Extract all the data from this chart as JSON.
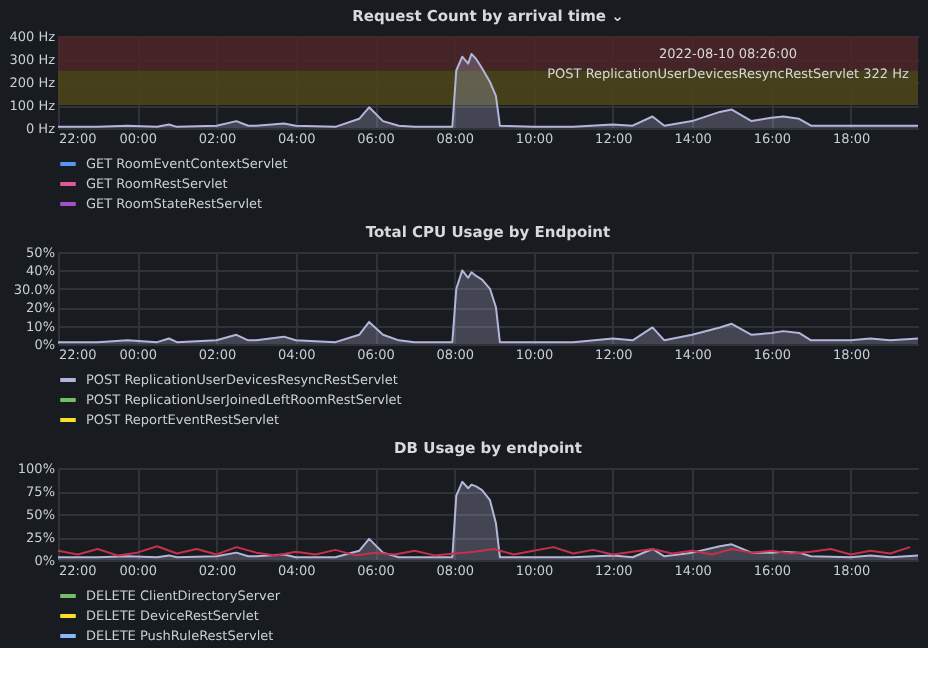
{
  "chart_data": [
    {
      "type": "line",
      "title": "Request Count by arrival time ⌄",
      "xlim": [
        "2022-08-09T22:00",
        "2022-08-10T19:42"
      ],
      "ylim": [
        0,
        400
      ],
      "xticks": [
        {
          "value": "2022-08-09T22:00",
          "label": "22:00"
        },
        {
          "value": "2022-08-10T00:00",
          "label": "00:00"
        },
        {
          "value": "2022-08-10T02:00",
          "label": "02:00"
        },
        {
          "value": "2022-08-10T04:00",
          "label": "04:00"
        },
        {
          "value": "2022-08-10T06:00",
          "label": "06:00"
        },
        {
          "value": "2022-08-10T08:00",
          "label": "08:00"
        },
        {
          "value": "2022-08-10T10:00",
          "label": "10:00"
        },
        {
          "value": "2022-08-10T12:00",
          "label": "12:00"
        },
        {
          "value": "2022-08-10T14:00",
          "label": "14:00"
        },
        {
          "value": "2022-08-10T16:00",
          "label": "16:00"
        },
        {
          "value": "2022-08-10T18:00",
          "label": "18:00"
        }
      ],
      "yticks": [
        {
          "value": 0,
          "label": "0 Hz"
        },
        {
          "value": 100,
          "label": "100 Hz"
        },
        {
          "value": 200,
          "label": "200 Hz"
        },
        {
          "value": 300,
          "label": "300 Hz"
        },
        {
          "value": 400,
          "label": "400 Hz"
        }
      ],
      "grid": true,
      "legend": "bottom",
      "bands": [
        {
          "axis": "y",
          "from": 250,
          "to": 400,
          "color": "#4a2629"
        },
        {
          "axis": "y",
          "from": 100,
          "to": 250,
          "color": "#4a4419"
        }
      ],
      "annotations": [
        "2022-08-10 08:26:00",
        "POST ReplicationUserDevicesResyncRestServlet  322 Hz"
      ],
      "x": [
        "2022-08-09T22:00",
        "2022-08-09T23:00",
        "2022-08-09T23:45",
        "2022-08-10T00:30",
        "2022-08-10T00:48",
        "2022-08-10T01:00",
        "2022-08-10T02:00",
        "2022-08-10T02:30",
        "2022-08-10T02:48",
        "2022-08-10T03:00",
        "2022-08-10T03:42",
        "2022-08-10T04:00",
        "2022-08-10T05:00",
        "2022-08-10T05:36",
        "2022-08-10T05:51",
        "2022-08-10T06:12",
        "2022-08-10T06:36",
        "2022-08-10T07:00",
        "2022-08-10T07:57",
        "2022-08-10T08:03",
        "2022-08-10T08:12",
        "2022-08-10T08:21",
        "2022-08-10T08:26",
        "2022-08-10T08:33",
        "2022-08-10T08:42",
        "2022-08-10T08:54",
        "2022-08-10T09:03",
        "2022-08-10T09:09",
        "2022-08-10T10:00",
        "2022-08-10T11:00",
        "2022-08-10T12:00",
        "2022-08-10T12:30",
        "2022-08-10T13:00",
        "2022-08-10T13:18",
        "2022-08-10T14:00",
        "2022-08-10T14:42",
        "2022-08-10T15:00",
        "2022-08-10T15:30",
        "2022-08-10T16:00",
        "2022-08-10T16:18",
        "2022-08-10T16:42",
        "2022-08-10T17:00",
        "2022-08-10T18:00",
        "2022-08-10T18:30",
        "2022-08-10T19:00",
        "2022-08-10T19:42"
      ],
      "series": [
        {
          "type": "area",
          "color": "#b3b5d9",
          "values": [
            5,
            5,
            10,
            5,
            15,
            5,
            10,
            30,
            10,
            10,
            20,
            10,
            5,
            40,
            90,
            30,
            10,
            5,
            5,
            250,
            310,
            280,
            322,
            300,
            260,
            200,
            140,
            10,
            5,
            5,
            15,
            10,
            50,
            10,
            30,
            70,
            80,
            30,
            45,
            50,
            40,
            10,
            10,
            10,
            10,
            10
          ]
        },
        {
          "name": "GET RoomEventContextServlet",
          "color": "#5794f2",
          "values": [
            null,
            null,
            null,
            null,
            null,
            null,
            null,
            null,
            null,
            null,
            null,
            null,
            null,
            null,
            null,
            null,
            null,
            null,
            null,
            null,
            null,
            null,
            null,
            null,
            null,
            null,
            null,
            null,
            null,
            null,
            null,
            null,
            null,
            null,
            null,
            null,
            null,
            null,
            null,
            null,
            null,
            null,
            null,
            null,
            null,
            null
          ]
        },
        {
          "name": "GET RoomRestServlet",
          "color": "#e05a9a",
          "values": [
            null,
            null,
            null,
            null,
            null,
            null,
            null,
            null,
            null,
            null,
            null,
            null,
            null,
            null,
            null,
            null,
            null,
            null,
            null,
            null,
            null,
            null,
            null,
            null,
            null,
            null,
            null,
            null,
            null,
            null,
            null,
            null,
            null,
            null,
            null,
            null,
            null,
            null,
            null,
            null,
            null,
            null,
            null,
            null,
            null,
            null
          ]
        },
        {
          "name": "GET RoomStateRestServlet",
          "color": "#a352cc",
          "values": [
            null,
            null,
            null,
            null,
            null,
            null,
            null,
            null,
            null,
            null,
            null,
            null,
            null,
            null,
            null,
            null,
            null,
            null,
            null,
            null,
            null,
            null,
            null,
            null,
            null,
            null,
            null,
            null,
            null,
            null,
            null,
            null,
            null,
            null,
            null,
            null,
            null,
            null,
            null,
            null,
            null,
            null,
            null,
            null,
            null,
            null
          ]
        }
      ]
    },
    {
      "type": "line",
      "title": "Total CPU Usage by Endpoint",
      "xlim": [
        "2022-08-09T22:00",
        "2022-08-10T19:42"
      ],
      "ylim": [
        0,
        50
      ],
      "xticks": [
        {
          "value": "2022-08-09T22:00",
          "label": "22:00"
        },
        {
          "value": "2022-08-10T00:00",
          "label": "00:00"
        },
        {
          "value": "2022-08-10T02:00",
          "label": "02:00"
        },
        {
          "value": "2022-08-10T04:00",
          "label": "04:00"
        },
        {
          "value": "2022-08-10T06:00",
          "label": "06:00"
        },
        {
          "value": "2022-08-10T08:00",
          "label": "08:00"
        },
        {
          "value": "2022-08-10T10:00",
          "label": "10:00"
        },
        {
          "value": "2022-08-10T12:00",
          "label": "12:00"
        },
        {
          "value": "2022-08-10T14:00",
          "label": "14:00"
        },
        {
          "value": "2022-08-10T16:00",
          "label": "16:00"
        },
        {
          "value": "2022-08-10T18:00",
          "label": "18:00"
        }
      ],
      "yticks": [
        {
          "value": 0,
          "label": "0%"
        },
        {
          "value": 10,
          "label": "10%"
        },
        {
          "value": 20,
          "label": "20%"
        },
        {
          "value": 30,
          "label": "30.0%"
        },
        {
          "value": 40,
          "label": "40%"
        },
        {
          "value": 50,
          "label": "50%"
        }
      ],
      "grid": true,
      "legend": "bottom",
      "x": [
        "2022-08-09T22:00",
        "2022-08-09T23:00",
        "2022-08-09T23:45",
        "2022-08-10T00:30",
        "2022-08-10T00:48",
        "2022-08-10T01:00",
        "2022-08-10T02:00",
        "2022-08-10T02:30",
        "2022-08-10T02:48",
        "2022-08-10T03:00",
        "2022-08-10T03:42",
        "2022-08-10T04:00",
        "2022-08-10T05:00",
        "2022-08-10T05:36",
        "2022-08-10T05:51",
        "2022-08-10T06:12",
        "2022-08-10T06:36",
        "2022-08-10T07:00",
        "2022-08-10T07:57",
        "2022-08-10T08:03",
        "2022-08-10T08:12",
        "2022-08-10T08:21",
        "2022-08-10T08:26",
        "2022-08-10T08:33",
        "2022-08-10T08:42",
        "2022-08-10T08:54",
        "2022-08-10T09:03",
        "2022-08-10T09:09",
        "2022-08-10T10:00",
        "2022-08-10T11:00",
        "2022-08-10T12:00",
        "2022-08-10T12:30",
        "2022-08-10T13:00",
        "2022-08-10T13:18",
        "2022-08-10T14:00",
        "2022-08-10T14:42",
        "2022-08-10T15:00",
        "2022-08-10T15:30",
        "2022-08-10T16:00",
        "2022-08-10T16:18",
        "2022-08-10T16:42",
        "2022-08-10T17:00",
        "2022-08-10T18:00",
        "2022-08-10T18:30",
        "2022-08-10T19:00",
        "2022-08-10T19:42"
      ],
      "series": [
        {
          "type": "area",
          "name": "POST ReplicationUserDevicesResyncRestServlet",
          "color": "#b3b5d9",
          "values": [
            1,
            1,
            2,
            1,
            3,
            1,
            2,
            5,
            2,
            2,
            4,
            2,
            1,
            5,
            12,
            5,
            2,
            1,
            1,
            30,
            40,
            36,
            39,
            37,
            35,
            30,
            20,
            1,
            1,
            1,
            3,
            2,
            9,
            2,
            5,
            9,
            11,
            5,
            6,
            7,
            6,
            2,
            2,
            3,
            2,
            3
          ]
        },
        {
          "name": "POST ReplicationUserJoinedLeftRoomRestServlet",
          "color": "#73bf69",
          "values": [
            null,
            null,
            null,
            null,
            null,
            null,
            null,
            null,
            null,
            null,
            null,
            null,
            null,
            null,
            null,
            null,
            null,
            null,
            null,
            null,
            null,
            null,
            null,
            null,
            null,
            null,
            null,
            null,
            null,
            null,
            null,
            null,
            null,
            null,
            null,
            null,
            null,
            null,
            null,
            null,
            null,
            null,
            null,
            null,
            null,
            null
          ]
        },
        {
          "name": "POST ReportEventRestServlet",
          "color": "#fade2a",
          "values": [
            null,
            null,
            null,
            null,
            null,
            null,
            null,
            null,
            null,
            null,
            null,
            null,
            null,
            null,
            null,
            null,
            null,
            null,
            null,
            null,
            null,
            null,
            null,
            null,
            null,
            null,
            null,
            null,
            null,
            null,
            null,
            null,
            null,
            null,
            null,
            null,
            null,
            null,
            null,
            null,
            null,
            null,
            null,
            null,
            null,
            null
          ]
        }
      ]
    },
    {
      "type": "line",
      "title": "DB Usage by endpoint",
      "xlim": [
        "2022-08-09T22:00",
        "2022-08-10T19:42"
      ],
      "ylim": [
        0,
        100
      ],
      "xticks": [
        {
          "value": "2022-08-09T22:00",
          "label": "22:00"
        },
        {
          "value": "2022-08-10T00:00",
          "label": "00:00"
        },
        {
          "value": "2022-08-10T02:00",
          "label": "02:00"
        },
        {
          "value": "2022-08-10T04:00",
          "label": "04:00"
        },
        {
          "value": "2022-08-10T06:00",
          "label": "06:00"
        },
        {
          "value": "2022-08-10T08:00",
          "label": "08:00"
        },
        {
          "value": "2022-08-10T10:00",
          "label": "10:00"
        },
        {
          "value": "2022-08-10T12:00",
          "label": "12:00"
        },
        {
          "value": "2022-08-10T14:00",
          "label": "14:00"
        },
        {
          "value": "2022-08-10T16:00",
          "label": "16:00"
        },
        {
          "value": "2022-08-10T18:00",
          "label": "18:00"
        }
      ],
      "yticks": [
        {
          "value": 0,
          "label": "0%"
        },
        {
          "value": 25,
          "label": "25%"
        },
        {
          "value": 50,
          "label": "50%"
        },
        {
          "value": 75,
          "label": "75%"
        },
        {
          "value": 100,
          "label": "100%"
        }
      ],
      "grid": true,
      "legend": "bottom",
      "x": [
        "2022-08-09T22:00",
        "2022-08-09T23:00",
        "2022-08-09T23:45",
        "2022-08-10T00:30",
        "2022-08-10T00:48",
        "2022-08-10T01:00",
        "2022-08-10T02:00",
        "2022-08-10T02:30",
        "2022-08-10T02:48",
        "2022-08-10T03:00",
        "2022-08-10T03:42",
        "2022-08-10T04:00",
        "2022-08-10T05:00",
        "2022-08-10T05:36",
        "2022-08-10T05:51",
        "2022-08-10T06:12",
        "2022-08-10T06:36",
        "2022-08-10T07:00",
        "2022-08-10T07:57",
        "2022-08-10T08:03",
        "2022-08-10T08:12",
        "2022-08-10T08:21",
        "2022-08-10T08:26",
        "2022-08-10T08:33",
        "2022-08-10T08:42",
        "2022-08-10T08:54",
        "2022-08-10T09:03",
        "2022-08-10T09:09",
        "2022-08-10T10:00",
        "2022-08-10T11:00",
        "2022-08-10T12:00",
        "2022-08-10T12:30",
        "2022-08-10T13:00",
        "2022-08-10T13:18",
        "2022-08-10T14:00",
        "2022-08-10T14:42",
        "2022-08-10T15:00",
        "2022-08-10T15:30",
        "2022-08-10T16:00",
        "2022-08-10T16:18",
        "2022-08-10T16:42",
        "2022-08-10T17:00",
        "2022-08-10T18:00",
        "2022-08-10T18:30",
        "2022-08-10T19:00",
        "2022-08-10T19:42"
      ],
      "series": [
        {
          "type": "area",
          "color": "#b3b5d9",
          "values": [
            3,
            3,
            4,
            3,
            5,
            3,
            4,
            8,
            4,
            4,
            6,
            3,
            3,
            10,
            23,
            8,
            3,
            3,
            3,
            70,
            85,
            78,
            82,
            80,
            76,
            65,
            40,
            3,
            3,
            3,
            5,
            3,
            12,
            4,
            8,
            15,
            17,
            8,
            8,
            9,
            8,
            4,
            3,
            5,
            3,
            5
          ]
        },
        {
          "color": "#c4314b",
          "x": [
            "2022-08-09T22:00",
            "2022-08-09T22:30",
            "2022-08-09T23:00",
            "2022-08-09T23:30",
            "2022-08-10T00:00",
            "2022-08-10T00:30",
            "2022-08-10T01:00",
            "2022-08-10T01:30",
            "2022-08-10T02:00",
            "2022-08-10T02:30",
            "2022-08-10T03:00",
            "2022-08-10T03:30",
            "2022-08-10T04:00",
            "2022-08-10T04:30",
            "2022-08-10T05:00",
            "2022-08-10T05:30",
            "2022-08-10T06:00",
            "2022-08-10T06:30",
            "2022-08-10T07:00",
            "2022-08-10T07:30",
            "2022-08-10T08:00",
            "2022-08-10T08:30",
            "2022-08-10T09:00",
            "2022-08-10T09:30",
            "2022-08-10T10:00",
            "2022-08-10T10:30",
            "2022-08-10T11:00",
            "2022-08-10T11:30",
            "2022-08-10T12:00",
            "2022-08-10T12:30",
            "2022-08-10T13:00",
            "2022-08-10T13:30",
            "2022-08-10T14:00",
            "2022-08-10T14:30",
            "2022-08-10T15:00",
            "2022-08-10T15:30",
            "2022-08-10T16:00",
            "2022-08-10T16:30",
            "2022-08-10T17:00",
            "2022-08-10T17:30",
            "2022-08-10T18:00",
            "2022-08-10T18:30",
            "2022-08-10T19:00",
            "2022-08-10T19:30"
          ],
          "values": [
            10,
            6,
            12,
            5,
            8,
            15,
            7,
            12,
            6,
            14,
            8,
            5,
            9,
            6,
            11,
            5,
            8,
            6,
            10,
            5,
            7,
            9,
            12,
            6,
            10,
            14,
            7,
            11,
            6,
            9,
            12,
            7,
            10,
            6,
            12,
            8,
            10,
            7,
            9,
            12,
            6,
            10,
            7,
            14
          ]
        },
        {
          "name": "DELETE ClientDirectoryServer",
          "color": "#73bf69",
          "values": [
            null,
            null,
            null,
            null,
            null,
            null,
            null,
            null,
            null,
            null,
            null,
            null,
            null,
            null,
            null,
            null,
            null,
            null,
            null,
            null,
            null,
            null,
            null,
            null,
            null,
            null,
            null,
            null,
            null,
            null,
            null,
            null,
            null,
            null,
            null,
            null,
            null,
            null,
            null,
            null,
            null,
            null,
            null,
            null,
            null,
            null
          ]
        },
        {
          "name": "DELETE DeviceRestServlet",
          "color": "#fade2a",
          "values": [
            null,
            null,
            null,
            null,
            null,
            null,
            null,
            null,
            null,
            null,
            null,
            null,
            null,
            null,
            null,
            null,
            null,
            null,
            null,
            null,
            null,
            null,
            null,
            null,
            null,
            null,
            null,
            null,
            null,
            null,
            null,
            null,
            null,
            null,
            null,
            null,
            null,
            null,
            null,
            null,
            null,
            null,
            null,
            null,
            null,
            null
          ]
        },
        {
          "name": "DELETE PushRuleRestServlet",
          "color": "#8ab8ff",
          "values": [
            null,
            null,
            null,
            null,
            null,
            null,
            null,
            null,
            null,
            null,
            null,
            null,
            null,
            null,
            null,
            null,
            null,
            null,
            null,
            null,
            null,
            null,
            null,
            null,
            null,
            null,
            null,
            null,
            null,
            null,
            null,
            null,
            null,
            null,
            null,
            null,
            null,
            null,
            null,
            null,
            null,
            null,
            null,
            null,
            null,
            null
          ]
        }
      ]
    }
  ]
}
